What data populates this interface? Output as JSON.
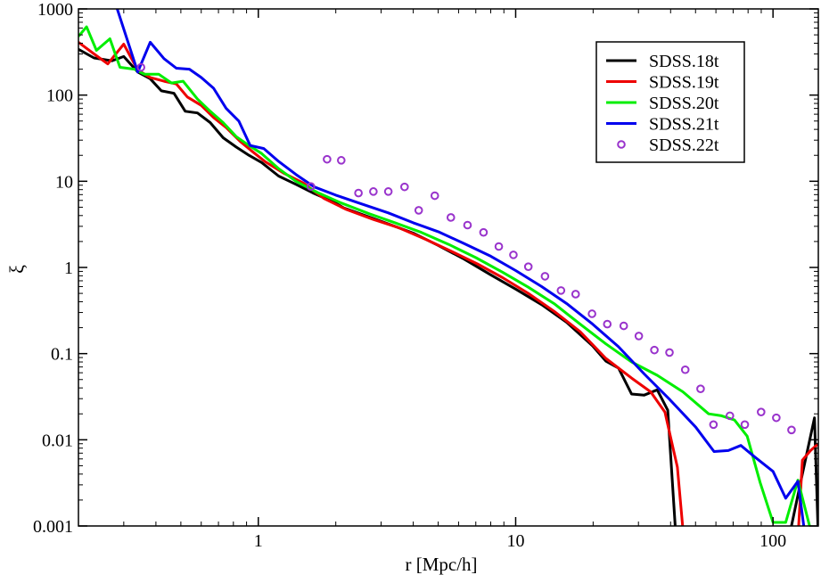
{
  "chart_data": {
    "type": "line",
    "title": "",
    "xlabel": "r [Mpc/h]",
    "ylabel": "ξ",
    "xscale": "log",
    "yscale": "log",
    "xlim": [
      0.2,
      150
    ],
    "ylim": [
      0.001,
      1000
    ],
    "grid": false,
    "legend_position": "top-right",
    "x_ticks": [
      {
        "value": 1,
        "label": "1"
      },
      {
        "value": 10,
        "label": "10"
      },
      {
        "value": 100,
        "label": "100"
      }
    ],
    "y_ticks": [
      {
        "value": 1000,
        "label": "1000"
      },
      {
        "value": 100,
        "label": "100"
      },
      {
        "value": 10,
        "label": "10"
      },
      {
        "value": 1,
        "label": "1"
      },
      {
        "value": 0.1,
        "label": "0.1"
      },
      {
        "value": 0.01,
        "label": "0.01"
      },
      {
        "value": 0.001,
        "label": "0.001"
      }
    ],
    "series": [
      {
        "name": "SDSS.18t",
        "color": "#000000",
        "style": "line",
        "points": [
          [
            0.2,
            340
          ],
          [
            0.23,
            270
          ],
          [
            0.27,
            250
          ],
          [
            0.3,
            280
          ],
          [
            0.34,
            185
          ],
          [
            0.38,
            155
          ],
          [
            0.42,
            112
          ],
          [
            0.47,
            105
          ],
          [
            0.52,
            65
          ],
          [
            0.58,
            62
          ],
          [
            0.65,
            48
          ],
          [
            0.73,
            32
          ],
          [
            0.82,
            25
          ],
          [
            0.92,
            20
          ],
          [
            1.03,
            16.5
          ],
          [
            1.2,
            11.5
          ],
          [
            1.4,
            9.2
          ],
          [
            1.65,
            7.2
          ],
          [
            1.95,
            5.8
          ],
          [
            2.15,
            4.9
          ],
          [
            2.6,
            4.0
          ],
          [
            3.2,
            3.2
          ],
          [
            4.0,
            2.5
          ],
          [
            5.0,
            1.8
          ],
          [
            6.3,
            1.25
          ],
          [
            8.0,
            0.82
          ],
          [
            10.0,
            0.56
          ],
          [
            12.6,
            0.37
          ],
          [
            15.8,
            0.23
          ],
          [
            19.9,
            0.123
          ],
          [
            22.4,
            0.082
          ],
          [
            25.1,
            0.068
          ],
          [
            28.2,
            0.034
          ],
          [
            31.6,
            0.033
          ],
          [
            35.5,
            0.038
          ],
          [
            39.0,
            0.022
          ],
          [
            42.0,
            0.0007
          ],
          [
            115,
            0.0007
          ],
          [
            130,
            0.004
          ],
          [
            145,
            0.018
          ],
          [
            150,
            0.0007
          ]
        ]
      },
      {
        "name": "SDSS.19t",
        "color": "#ee0000",
        "style": "line",
        "points": [
          [
            0.2,
            410
          ],
          [
            0.23,
            300
          ],
          [
            0.26,
            230
          ],
          [
            0.3,
            390
          ],
          [
            0.34,
            195
          ],
          [
            0.38,
            160
          ],
          [
            0.43,
            145
          ],
          [
            0.48,
            135
          ],
          [
            0.53,
            95
          ],
          [
            0.6,
            76
          ],
          [
            0.67,
            55
          ],
          [
            0.75,
            42
          ],
          [
            0.85,
            29
          ],
          [
            0.95,
            22
          ],
          [
            1.06,
            17
          ],
          [
            1.25,
            12.5
          ],
          [
            1.5,
            9.5
          ],
          [
            1.8,
            6.3
          ],
          [
            2.2,
            4.7
          ],
          [
            2.8,
            3.6
          ],
          [
            3.5,
            2.9
          ],
          [
            4.5,
            2.1
          ],
          [
            5.6,
            1.55
          ],
          [
            7.1,
            1.1
          ],
          [
            8.9,
            0.76
          ],
          [
            11.2,
            0.5
          ],
          [
            14.1,
            0.31
          ],
          [
            17.8,
            0.18
          ],
          [
            22.4,
            0.088
          ],
          [
            28.2,
            0.052
          ],
          [
            33.5,
            0.036
          ],
          [
            38.0,
            0.021
          ],
          [
            42.5,
            0.0048
          ],
          [
            45.0,
            0.0007
          ],
          [
            125,
            0.0007
          ],
          [
            130,
            0.0058
          ],
          [
            140,
            0.0075
          ],
          [
            150,
            0.009
          ]
        ]
      },
      {
        "name": "SDSS.20t",
        "color": "#00ee00",
        "style": "line",
        "points": [
          [
            0.2,
            480
          ],
          [
            0.215,
            620
          ],
          [
            0.235,
            330
          ],
          [
            0.265,
            450
          ],
          [
            0.29,
            210
          ],
          [
            0.33,
            200
          ],
          [
            0.36,
            175
          ],
          [
            0.41,
            175
          ],
          [
            0.46,
            138
          ],
          [
            0.51,
            145
          ],
          [
            0.58,
            90
          ],
          [
            0.65,
            65
          ],
          [
            0.73,
            48
          ],
          [
            0.82,
            33
          ],
          [
            0.92,
            26
          ],
          [
            1.03,
            21
          ],
          [
            1.2,
            14
          ],
          [
            1.4,
            10
          ],
          [
            1.7,
            7.4
          ],
          [
            2.1,
            5.6
          ],
          [
            2.7,
            4.2
          ],
          [
            3.4,
            3.3
          ],
          [
            4.3,
            2.55
          ],
          [
            5.5,
            1.85
          ],
          [
            7.0,
            1.3
          ],
          [
            8.9,
            0.88
          ],
          [
            11.2,
            0.59
          ],
          [
            14.1,
            0.38
          ],
          [
            17.8,
            0.22
          ],
          [
            22.4,
            0.13
          ],
          [
            28.2,
            0.08
          ],
          [
            35.5,
            0.056
          ],
          [
            44.7,
            0.036
          ],
          [
            56.2,
            0.02
          ],
          [
            63.1,
            0.019
          ],
          [
            70.8,
            0.017
          ],
          [
            79.4,
            0.011
          ],
          [
            89.1,
            0.0032
          ],
          [
            100,
            0.0011
          ],
          [
            112,
            0.0011
          ],
          [
            125,
            0.0034
          ],
          [
            140,
            0.0009
          ]
        ]
      },
      {
        "name": "SDSS.21t",
        "color": "#0000ee",
        "style": "line",
        "points": [
          [
            0.28,
            1100
          ],
          [
            0.34,
            185
          ],
          [
            0.38,
            410
          ],
          [
            0.43,
            265
          ],
          [
            0.48,
            205
          ],
          [
            0.54,
            200
          ],
          [
            0.6,
            160
          ],
          [
            0.67,
            120
          ],
          [
            0.75,
            70
          ],
          [
            0.84,
            50
          ],
          [
            0.93,
            26
          ],
          [
            1.05,
            24
          ],
          [
            1.2,
            17
          ],
          [
            1.4,
            12
          ],
          [
            1.65,
            8.6
          ],
          [
            2.0,
            6.9
          ],
          [
            2.5,
            5.5
          ],
          [
            3.2,
            4.3
          ],
          [
            4.0,
            3.3
          ],
          [
            5.0,
            2.6
          ],
          [
            6.3,
            1.9
          ],
          [
            8.0,
            1.35
          ],
          [
            10.0,
            0.92
          ],
          [
            12.6,
            0.6
          ],
          [
            15.8,
            0.38
          ],
          [
            19.9,
            0.22
          ],
          [
            25.1,
            0.12
          ],
          [
            31.6,
            0.058
          ],
          [
            39.8,
            0.029
          ],
          [
            50.1,
            0.014
          ],
          [
            59.0,
            0.0073
          ],
          [
            67.0,
            0.0075
          ],
          [
            75.0,
            0.0086
          ],
          [
            85.0,
            0.0063
          ],
          [
            100,
            0.0043
          ],
          [
            112,
            0.0021
          ],
          [
            125,
            0.0033
          ],
          [
            133,
            0.0008
          ]
        ]
      },
      {
        "name": "SDSS.22t",
        "color": "#9933cc",
        "style": "markers",
        "points": [
          [
            0.35,
            210
          ],
          [
            1.6,
            8.7
          ],
          [
            1.85,
            18
          ],
          [
            2.1,
            17.5
          ],
          [
            2.45,
            7.3
          ],
          [
            2.8,
            7.6
          ],
          [
            3.2,
            7.6
          ],
          [
            3.7,
            8.6
          ],
          [
            4.2,
            4.6
          ],
          [
            4.85,
            6.8
          ],
          [
            5.6,
            3.8
          ],
          [
            6.5,
            3.1
          ],
          [
            7.5,
            2.55
          ],
          [
            8.6,
            1.75
          ],
          [
            9.8,
            1.4
          ],
          [
            11.2,
            1.02
          ],
          [
            13.0,
            0.79
          ],
          [
            15.0,
            0.54
          ],
          [
            17.1,
            0.49
          ],
          [
            19.8,
            0.29
          ],
          [
            22.7,
            0.22
          ],
          [
            26.3,
            0.21
          ],
          [
            30.1,
            0.16
          ],
          [
            34.6,
            0.11
          ],
          [
            39.6,
            0.103
          ],
          [
            45.6,
            0.065
          ],
          [
            52.3,
            0.039
          ],
          [
            58.7,
            0.015
          ],
          [
            68.0,
            0.019
          ],
          [
            77.7,
            0.015
          ],
          [
            89.9,
            0.021
          ],
          [
            103,
            0.018
          ],
          [
            118,
            0.013
          ]
        ]
      }
    ]
  }
}
